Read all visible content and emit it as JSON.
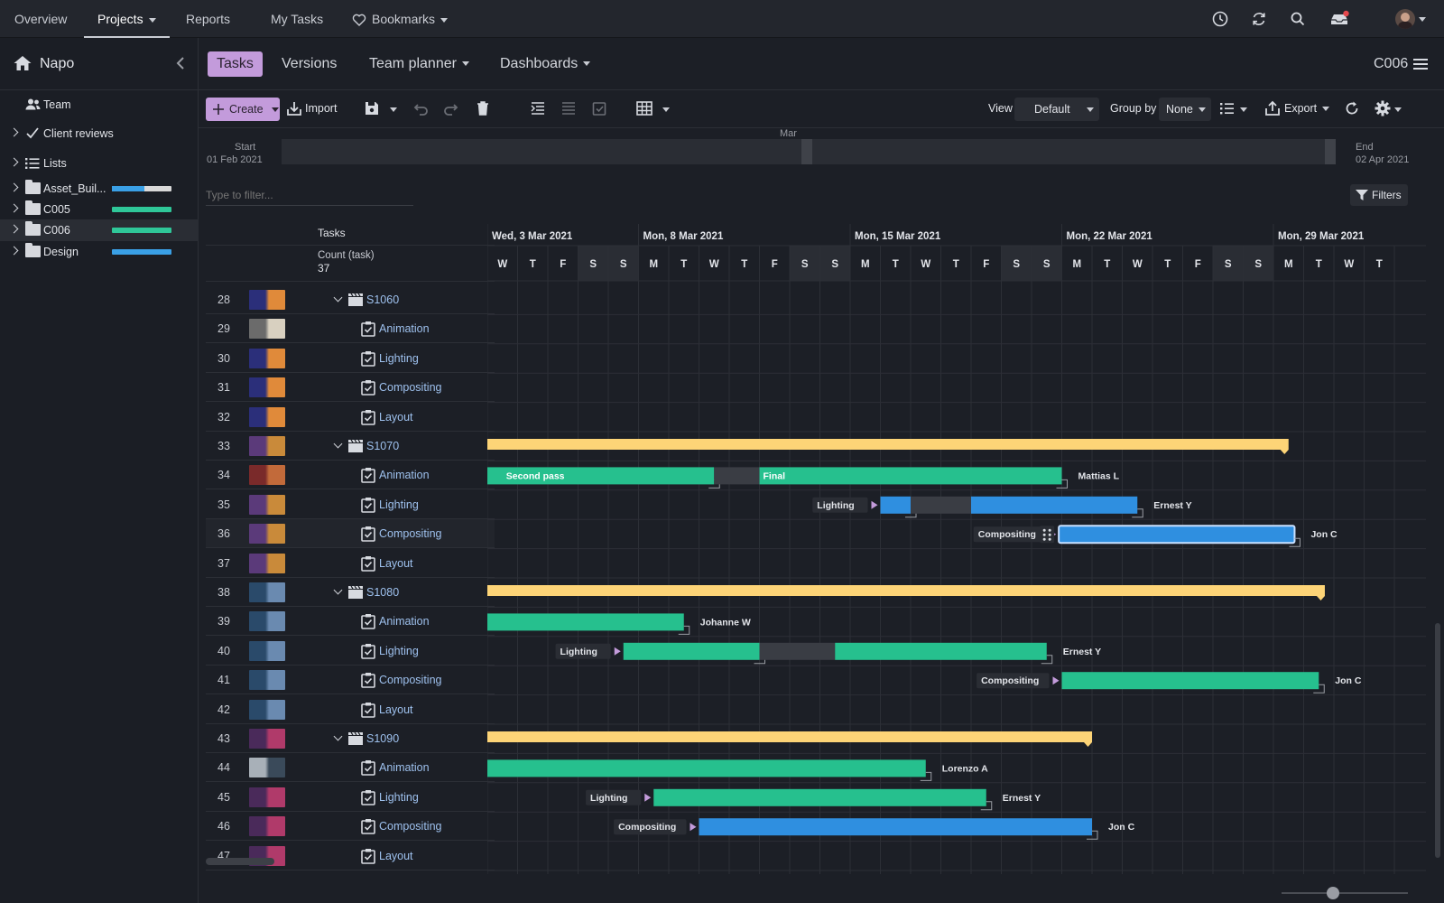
{
  "nav": {
    "items": [
      "Overview",
      "Projects",
      "Reports",
      "My Tasks",
      "Bookmarks"
    ]
  },
  "sidebar": {
    "project": "Napo",
    "items": [
      {
        "label": "Team"
      },
      {
        "label": "Client reviews"
      },
      {
        "label": "Lists"
      },
      {
        "label": "Asset_Buil...",
        "progress": [
          0.55,
          1.0
        ],
        "colors": [
          "#3aa0e6",
          "#d9d9d9"
        ]
      },
      {
        "label": "C005",
        "progress": [
          1.0
        ],
        "colors": [
          "#2fc799"
        ]
      },
      {
        "label": "C006",
        "progress": [
          1.0
        ],
        "colors": [
          "#2fc799"
        ]
      },
      {
        "label": "Design",
        "progress": [
          1.0
        ],
        "colors": [
          "#3aa0e6"
        ]
      }
    ]
  },
  "subnav": {
    "tabs": [
      "Tasks",
      "Versions",
      "Team planner",
      "Dashboards"
    ],
    "context": "C006"
  },
  "toolbar": {
    "create": "Create",
    "import": "Import",
    "view_label": "View",
    "view_value": "Default",
    "groupby_label": "Group by",
    "groupby_value": "None",
    "export": "Export"
  },
  "range": {
    "start_label": "Start",
    "start_date": "01 Feb 2021",
    "month": "Mar",
    "end_label": "End",
    "end_date": "02 Apr 2021"
  },
  "filter": {
    "placeholder": "Type to filter...",
    "button": "Filters"
  },
  "table": {
    "tasks_header": "Tasks",
    "count_label": "Count (task)",
    "count_value": "37",
    "weeks": [
      "Wed, 3 Mar 2021",
      "Mon, 8 Mar 2021",
      "Mon, 15 Mar 2021",
      "Mon, 22 Mar 2021",
      "Mon, 29 Mar 2021"
    ],
    "days": [
      "W",
      "T",
      "F",
      "S",
      "S",
      "M",
      "T",
      "W",
      "T",
      "F",
      "S",
      "S",
      "M",
      "T",
      "W",
      "T",
      "F",
      "S",
      "S",
      "M",
      "T",
      "W",
      "T",
      "F",
      "S",
      "S",
      "M",
      "T",
      "W",
      "T"
    ],
    "rows": [
      {
        "num": "28",
        "name": "S1060",
        "type": "shot",
        "thumb": [
          "#2b2f7a",
          "#e08a3a"
        ]
      },
      {
        "num": "29",
        "name": "Animation",
        "type": "task",
        "thumb": [
          "#6b6b6b",
          "#d8d0c0"
        ]
      },
      {
        "num": "30",
        "name": "Lighting",
        "type": "task",
        "thumb": [
          "#2b2f7a",
          "#e08a3a"
        ]
      },
      {
        "num": "31",
        "name": "Compositing",
        "type": "task",
        "thumb": [
          "#2b2f7a",
          "#e08a3a"
        ]
      },
      {
        "num": "32",
        "name": "Layout",
        "type": "task",
        "thumb": [
          "#2b2f7a",
          "#e08a3a"
        ]
      },
      {
        "num": "33",
        "name": "S1070",
        "type": "shot",
        "thumb": [
          "#5b3a7a",
          "#c98a3a"
        ]
      },
      {
        "num": "34",
        "name": "Animation",
        "type": "task",
        "thumb": [
          "#7a2a2a",
          "#c26a3a"
        ]
      },
      {
        "num": "35",
        "name": "Lighting",
        "type": "task",
        "thumb": [
          "#5b3a7a",
          "#c98a3a"
        ]
      },
      {
        "num": "36",
        "name": "Compositing",
        "type": "task",
        "thumb": [
          "#5b3a7a",
          "#c98a3a"
        ],
        "selected": true
      },
      {
        "num": "37",
        "name": "Layout",
        "type": "task",
        "thumb": [
          "#5b3a7a",
          "#c98a3a"
        ]
      },
      {
        "num": "38",
        "name": "S1080",
        "type": "shot",
        "thumb": [
          "#2a4a6a",
          "#6a8ab0"
        ]
      },
      {
        "num": "39",
        "name": "Animation",
        "type": "task",
        "thumb": [
          "#2a4a6a",
          "#6a8ab0"
        ]
      },
      {
        "num": "40",
        "name": "Lighting",
        "type": "task",
        "thumb": [
          "#2a4a6a",
          "#6a8ab0"
        ]
      },
      {
        "num": "41",
        "name": "Compositing",
        "type": "task",
        "thumb": [
          "#2a4a6a",
          "#6a8ab0"
        ]
      },
      {
        "num": "42",
        "name": "Layout",
        "type": "task",
        "thumb": [
          "#2a4a6a",
          "#6a8ab0"
        ]
      },
      {
        "num": "43",
        "name": "S1090",
        "type": "shot",
        "thumb": [
          "#4a2a5a",
          "#b03a6a"
        ]
      },
      {
        "num": "44",
        "name": "Animation",
        "type": "task",
        "thumb": [
          "#a8b0b8",
          "#3a4a5a"
        ]
      },
      {
        "num": "45",
        "name": "Lighting",
        "type": "task",
        "thumb": [
          "#4a2a5a",
          "#b03a6a"
        ]
      },
      {
        "num": "46",
        "name": "Compositing",
        "type": "task",
        "thumb": [
          "#4a2a5a",
          "#b03a6a"
        ]
      },
      {
        "num": "47",
        "name": "Layout",
        "type": "task",
        "thumb": [
          "#4a2a5a",
          "#b03a6a"
        ]
      }
    ]
  },
  "gantt": {
    "colors": {
      "summary": "#fdd477",
      "green": "#26c08e",
      "blue": "#2f8fe0",
      "gap": "#3a3d44",
      "label_bg": "#2a2d34"
    },
    "bars": [
      {
        "row": 5,
        "type": "summary",
        "start": 0,
        "end": 26.5
      },
      {
        "row": 6,
        "type": "green",
        "start": 0,
        "end": 7.5,
        "inner_label": "Second pass",
        "inner_offset": 0.5
      },
      {
        "row": 6,
        "type": "gap",
        "start": 7.5,
        "end": 9.0
      },
      {
        "row": 6,
        "type": "green",
        "start": 9.0,
        "end": 19.0,
        "inner_label": "Final",
        "assignee": "Mattias L"
      },
      {
        "row": 7,
        "type": "blue",
        "start": 13.0,
        "end": 14.0,
        "prelabel": "Lighting"
      },
      {
        "row": 7,
        "type": "gap",
        "start": 14.0,
        "end": 16.0
      },
      {
        "row": 7,
        "type": "blue",
        "start": 16.0,
        "end": 21.5,
        "assignee": "Ernest Y"
      },
      {
        "row": 8,
        "type": "blue-selected",
        "start": 18.9,
        "end": 26.7,
        "prelabel": "Compositing",
        "assignee": "Jon C"
      },
      {
        "row": 10,
        "type": "summary",
        "start": 0,
        "end": 27.7
      },
      {
        "row": 11,
        "type": "green",
        "start": 0,
        "end": 6.5,
        "assignee": "Johanne W"
      },
      {
        "row": 12,
        "type": "green",
        "start": 4.5,
        "end": 9.0,
        "prelabel": "Lighting"
      },
      {
        "row": 12,
        "type": "gap",
        "start": 9.0,
        "end": 11.5
      },
      {
        "row": 12,
        "type": "green",
        "start": 11.5,
        "end": 18.5,
        "assignee": "Ernest Y"
      },
      {
        "row": 13,
        "type": "green",
        "start": 19.0,
        "end": 27.5,
        "prelabel": "Compositing",
        "assignee": "Jon C"
      },
      {
        "row": 15,
        "type": "summary",
        "start": 0,
        "end": 20.0
      },
      {
        "row": 16,
        "type": "green",
        "start": 0,
        "end": 14.5,
        "assignee": "Lorenzo A"
      },
      {
        "row": 17,
        "type": "green",
        "start": 5.5,
        "end": 16.5,
        "prelabel": "Lighting",
        "assignee": "Ernest Y"
      },
      {
        "row": 18,
        "type": "blue",
        "start": 7.0,
        "end": 20.0,
        "prelabel": "Compositing",
        "assignee": "Jon C"
      }
    ]
  }
}
